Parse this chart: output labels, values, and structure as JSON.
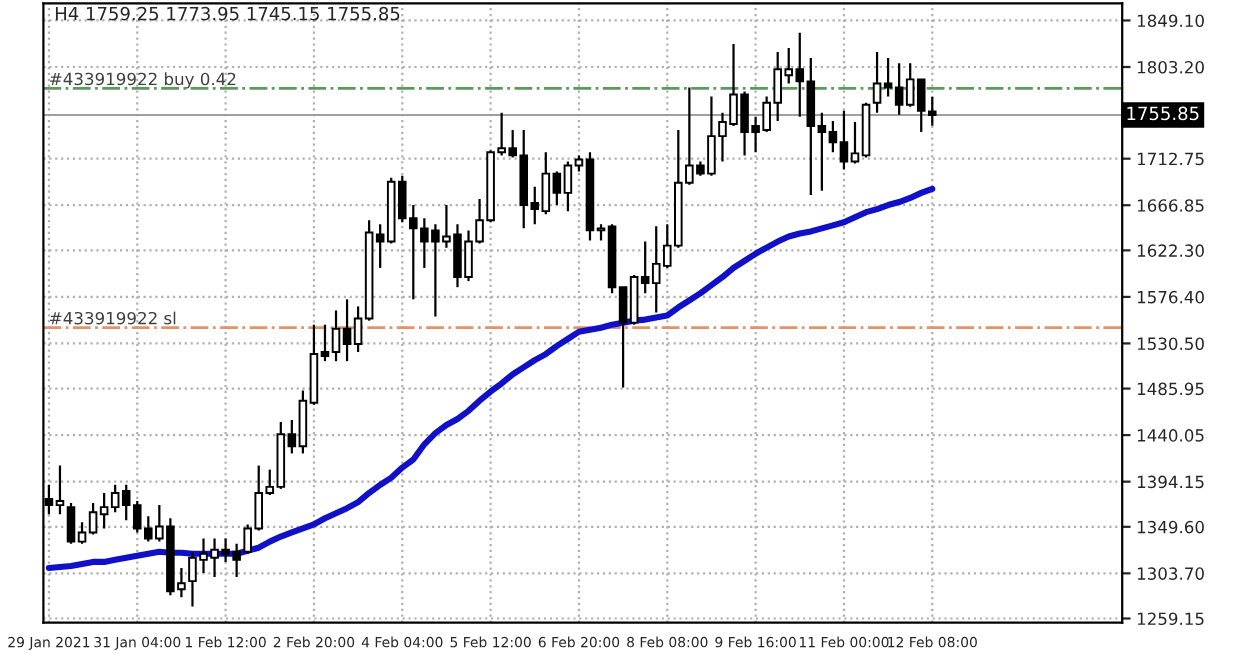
{
  "chart_data": {
    "type": "candlestick",
    "title": "H4 1759.25 1773.95 1745.15 1755.85",
    "categories": [
      "29 Jan 2021",
      null,
      null,
      null,
      null,
      null,
      null,
      null,
      "31 Jan 04:00",
      null,
      null,
      null,
      null,
      null,
      null,
      null,
      "1 Feb 12:00",
      null,
      null,
      null,
      null,
      null,
      null,
      null,
      "2 Feb 20:00",
      null,
      null,
      null,
      null,
      null,
      null,
      null,
      "4 Feb 04:00",
      null,
      null,
      null,
      null,
      null,
      null,
      null,
      "5 Feb 12:00",
      null,
      null,
      null,
      null,
      null,
      null,
      null,
      "6 Feb 20:00",
      null,
      null,
      null,
      null,
      null,
      null,
      null,
      "8 Feb 08:00",
      null,
      null,
      null,
      null,
      null,
      null,
      null,
      "9 Feb 16:00",
      null,
      null,
      null,
      null,
      null,
      null,
      null,
      "11 Feb 00:00",
      null,
      null,
      null,
      null,
      null,
      null,
      null,
      "12 Feb 08:00"
    ],
    "ohlc": [
      [
        1377,
        1391,
        1362,
        1371
      ],
      [
        1371,
        1410,
        1362,
        1375
      ],
      [
        1369,
        1373,
        1333,
        1335
      ],
      [
        1335,
        1354,
        1333,
        1344
      ],
      [
        1344,
        1373,
        1342,
        1364
      ],
      [
        1362,
        1383,
        1348,
        1369
      ],
      [
        1369,
        1391,
        1364,
        1383
      ],
      [
        1385,
        1391,
        1356,
        1371
      ],
      [
        1371,
        1375,
        1344,
        1348
      ],
      [
        1348,
        1360,
        1335,
        1338
      ],
      [
        1338,
        1371,
        1335,
        1350
      ],
      [
        1350,
        1358,
        1282,
        1286
      ],
      [
        1288,
        1309,
        1280,
        1294
      ],
      [
        1296,
        1325,
        1271,
        1319
      ],
      [
        1317,
        1338,
        1304,
        1323
      ],
      [
        1319,
        1338,
        1300,
        1327
      ],
      [
        1327,
        1338,
        1315,
        1323
      ],
      [
        1325,
        1333,
        1300,
        1317
      ],
      [
        1325,
        1352,
        1323,
        1348
      ],
      [
        1348,
        1410,
        1346,
        1383
      ],
      [
        1383,
        1406,
        1381,
        1389
      ],
      [
        1389,
        1453,
        1387,
        1441
      ],
      [
        1441,
        1455,
        1422,
        1429
      ],
      [
        1429,
        1484,
        1422,
        1474
      ],
      [
        1472,
        1549,
        1470,
        1520
      ],
      [
        1522,
        1549,
        1513,
        1518
      ],
      [
        1522,
        1563,
        1513,
        1545
      ],
      [
        1545,
        1574,
        1513,
        1530
      ],
      [
        1530,
        1567,
        1522,
        1555
      ],
      [
        1555,
        1652,
        1553,
        1640
      ],
      [
        1638,
        1648,
        1605,
        1631
      ],
      [
        1631,
        1694,
        1629,
        1690
      ],
      [
        1690,
        1696,
        1650,
        1654
      ],
      [
        1654,
        1667,
        1574,
        1644
      ],
      [
        1644,
        1654,
        1605,
        1631
      ],
      [
        1642,
        1648,
        1557,
        1631
      ],
      [
        1631,
        1667,
        1625,
        1636
      ],
      [
        1638,
        1648,
        1586,
        1596
      ],
      [
        1596,
        1642,
        1592,
        1631
      ],
      [
        1631,
        1673,
        1629,
        1652
      ],
      [
        1652,
        1721,
        1650,
        1719
      ],
      [
        1719,
        1758,
        1716,
        1723
      ],
      [
        1723,
        1741,
        1714,
        1716
      ],
      [
        1716,
        1741,
        1644,
        1667
      ],
      [
        1669,
        1685,
        1648,
        1663
      ],
      [
        1661,
        1719,
        1658,
        1698
      ],
      [
        1698,
        1700,
        1667,
        1679
      ],
      [
        1679,
        1710,
        1661,
        1706
      ],
      [
        1706,
        1716,
        1700,
        1712
      ],
      [
        1712,
        1719,
        1632,
        1642
      ],
      [
        1642,
        1648,
        1632,
        1644
      ],
      [
        1646,
        1648,
        1580,
        1586
      ],
      [
        1586,
        1586,
        1487,
        1551
      ],
      [
        1551,
        1598,
        1549,
        1596
      ],
      [
        1596,
        1631,
        1580,
        1590
      ],
      [
        1590,
        1646,
        1561,
        1609
      ],
      [
        1607,
        1648,
        1605,
        1627
      ],
      [
        1627,
        1741,
        1625,
        1689
      ],
      [
        1689,
        1783,
        1687,
        1706
      ],
      [
        1706,
        1710,
        1696,
        1698
      ],
      [
        1698,
        1774,
        1696,
        1735
      ],
      [
        1735,
        1758,
        1710,
        1749
      ],
      [
        1747,
        1826,
        1745,
        1776
      ],
      [
        1776,
        1779,
        1716,
        1739
      ],
      [
        1745,
        1754,
        1719,
        1739
      ],
      [
        1741,
        1774,
        1739,
        1768
      ],
      [
        1768,
        1818,
        1750,
        1801
      ],
      [
        1795,
        1822,
        1787,
        1801
      ],
      [
        1801,
        1837,
        1754,
        1789
      ],
      [
        1789,
        1812,
        1677,
        1745
      ],
      [
        1745,
        1758,
        1681,
        1739
      ],
      [
        1739,
        1750,
        1719,
        1729
      ],
      [
        1729,
        1760,
        1702,
        1710
      ],
      [
        1710,
        1749,
        1708,
        1718
      ],
      [
        1716,
        1768,
        1714,
        1766
      ],
      [
        1768,
        1818,
        1758,
        1787
      ],
      [
        1787,
        1812,
        1774,
        1783
      ],
      [
        1783,
        1807,
        1756,
        1766
      ],
      [
        1766,
        1807,
        1764,
        1791
      ],
      [
        1791,
        1791,
        1739,
        1760
      ],
      [
        1759.25,
        1773.95,
        1745.15,
        1755.85
      ]
    ],
    "series": [
      {
        "type": "line",
        "color": "#1010c8",
        "values": [
          1309,
          1310,
          1311,
          1313,
          1315,
          1315,
          1317,
          1319,
          1321,
          1323,
          1325,
          1324,
          1324,
          1323,
          1323,
          1323,
          1323,
          1323,
          1326,
          1329,
          1335,
          1340,
          1344,
          1348,
          1352,
          1358,
          1363,
          1368,
          1374,
          1383,
          1391,
          1398,
          1408,
          1416,
          1431,
          1442,
          1450,
          1456,
          1464,
          1474,
          1483,
          1491,
          1500,
          1507,
          1514,
          1520,
          1528,
          1535,
          1542,
          1544,
          1546,
          1549,
          1551,
          1553,
          1554,
          1556,
          1558,
          1566,
          1573,
          1580,
          1588,
          1596,
          1605,
          1612,
          1619,
          1625,
          1631,
          1636,
          1639,
          1641,
          1644,
          1647,
          1650,
          1655,
          1660,
          1663,
          1667,
          1670,
          1674,
          1679,
          1683
        ]
      }
    ],
    "ylim": [
      1255,
      1866
    ],
    "yticks": [
      {
        "value": 1259.15,
        "label": "1259.15"
      },
      {
        "value": 1303.7,
        "label": "1303.70"
      },
      {
        "value": 1349.6,
        "label": "1349.60"
      },
      {
        "value": 1394.15,
        "label": "1394.15"
      },
      {
        "value": 1440.05,
        "label": "1440.05"
      },
      {
        "value": 1485.95,
        "label": "1485.95"
      },
      {
        "value": 1530.5,
        "label": "1530.50"
      },
      {
        "value": 1576.4,
        "label": "1576.40"
      },
      {
        "value": 1622.3,
        "label": "1622.30"
      },
      {
        "value": 1666.85,
        "label": "1666.85"
      },
      {
        "value": 1712.75,
        "label": "1712.75"
      },
      {
        "value": 1803.2,
        "label": "1803.20"
      },
      {
        "value": 1849.1,
        "label": "1849.10"
      }
    ],
    "ref_lines": [
      {
        "axis": "y",
        "value": 1782,
        "label": "#433919922 buy 0.42",
        "color": "#5a9a5a",
        "line_style": "dashdot"
      },
      {
        "axis": "y",
        "value": 1546,
        "label": "#433919922 sl",
        "color": "#e0946a",
        "line_style": "dashdot"
      },
      {
        "axis": "y",
        "value": 1755.85,
        "label": "1755.85",
        "color": "#a0a0a0",
        "line_style": "solid"
      }
    ],
    "grid": true
  }
}
